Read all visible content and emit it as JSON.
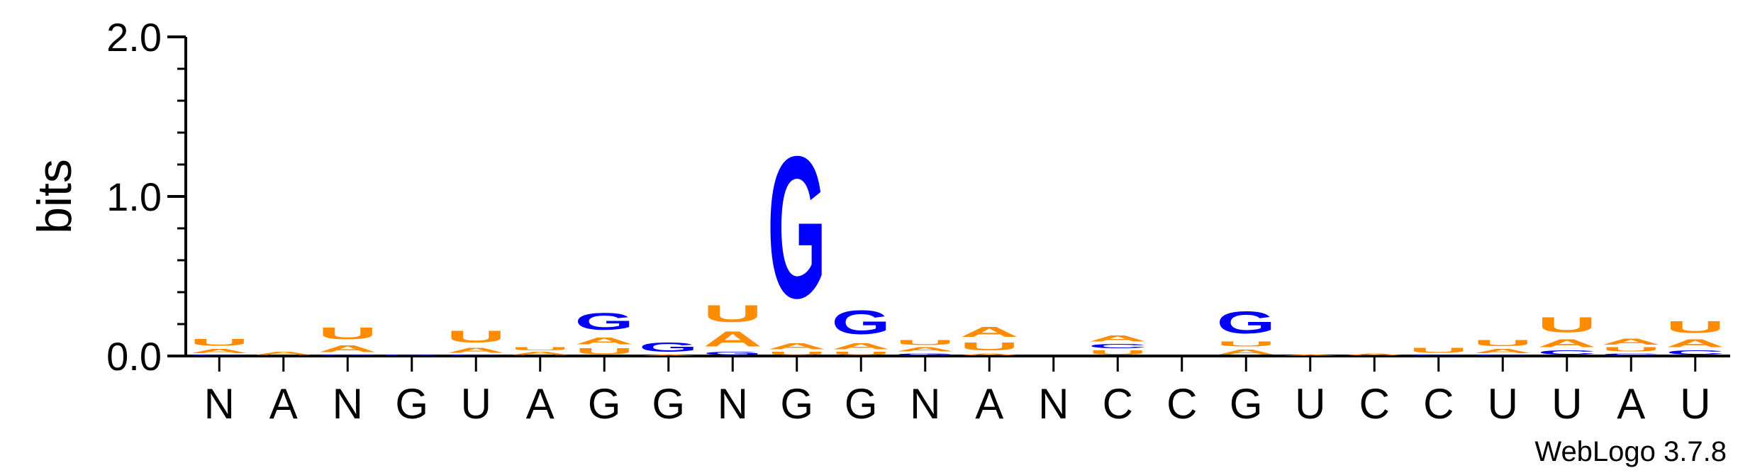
{
  "chart_data": {
    "type": "sequence-logo",
    "ylabel": "bits",
    "ylim": [
      0,
      2.0
    ],
    "yticks": [
      "0.0",
      "1.0",
      "2.0"
    ],
    "consensus": [
      "N",
      "A",
      "N",
      "G",
      "U",
      "A",
      "G",
      "G",
      "N",
      "G",
      "G",
      "N",
      "A",
      "N",
      "C",
      "C",
      "G",
      "U",
      "C",
      "C",
      "U",
      "U",
      "A",
      "U"
    ],
    "colors": {
      "A": "#ff8c00",
      "U": "#ff8c00",
      "G": "#0000ff",
      "C": "#0000ff"
    },
    "positions": [
      [
        [
          "C",
          0.01
        ],
        [
          "A",
          0.04
        ],
        [
          "U",
          0.07
        ]
      ],
      [
        [
          "A",
          0.03
        ]
      ],
      [
        [
          "G",
          0.01
        ],
        [
          "A",
          0.07
        ],
        [
          "U",
          0.12
        ]
      ],
      [
        [
          "G",
          0.01
        ]
      ],
      [
        [
          "C",
          0.01
        ],
        [
          "A",
          0.05
        ],
        [
          "U",
          0.12
        ]
      ],
      [
        [
          "A",
          0.03
        ],
        [
          "U",
          0.03
        ]
      ],
      [
        [
          "U",
          0.06
        ],
        [
          "A",
          0.07
        ],
        [
          "G",
          0.17
        ]
      ],
      [
        [
          "A",
          0.01
        ],
        [
          "G",
          0.09
        ]
      ],
      [
        [
          "G",
          0.03
        ],
        [
          "A",
          0.15
        ],
        [
          "U",
          0.17
        ]
      ],
      [
        [
          "U",
          0.03
        ],
        [
          "A",
          0.06
        ],
        [
          "G",
          1.42
        ]
      ],
      [
        [
          "U",
          0.03
        ],
        [
          "A",
          0.06
        ],
        [
          "G",
          0.24
        ]
      ],
      [
        [
          "G",
          0.02
        ],
        [
          "A",
          0.04
        ],
        [
          "U",
          0.05
        ]
      ],
      [
        [
          "A",
          0.02
        ],
        [
          "U",
          0.08
        ],
        [
          "A",
          0.1
        ]
      ],
      [],
      [
        [
          "U",
          0.04
        ],
        [
          "C",
          0.04
        ],
        [
          "A",
          0.06
        ]
      ],
      [],
      [
        [
          "A",
          0.05
        ],
        [
          "U",
          0.05
        ],
        [
          "G",
          0.22
        ]
      ],
      [
        [
          "A",
          0.01
        ]
      ],
      [
        [
          "A",
          0.02
        ]
      ],
      [
        [
          "C",
          0.01
        ],
        [
          "U",
          0.05
        ]
      ],
      [
        [
          "C",
          0.01
        ],
        [
          "A",
          0.04
        ],
        [
          "U",
          0.06
        ]
      ],
      [
        [
          "C",
          0.04
        ],
        [
          "A",
          0.08
        ],
        [
          "U",
          0.15
        ]
      ],
      [
        [
          "C",
          0.02
        ],
        [
          "U",
          0.04
        ],
        [
          "A",
          0.06
        ]
      ],
      [
        [
          "C",
          0.04
        ],
        [
          "A",
          0.08
        ],
        [
          "U",
          0.12
        ]
      ]
    ]
  },
  "credit": "WebLogo 3.7.8"
}
